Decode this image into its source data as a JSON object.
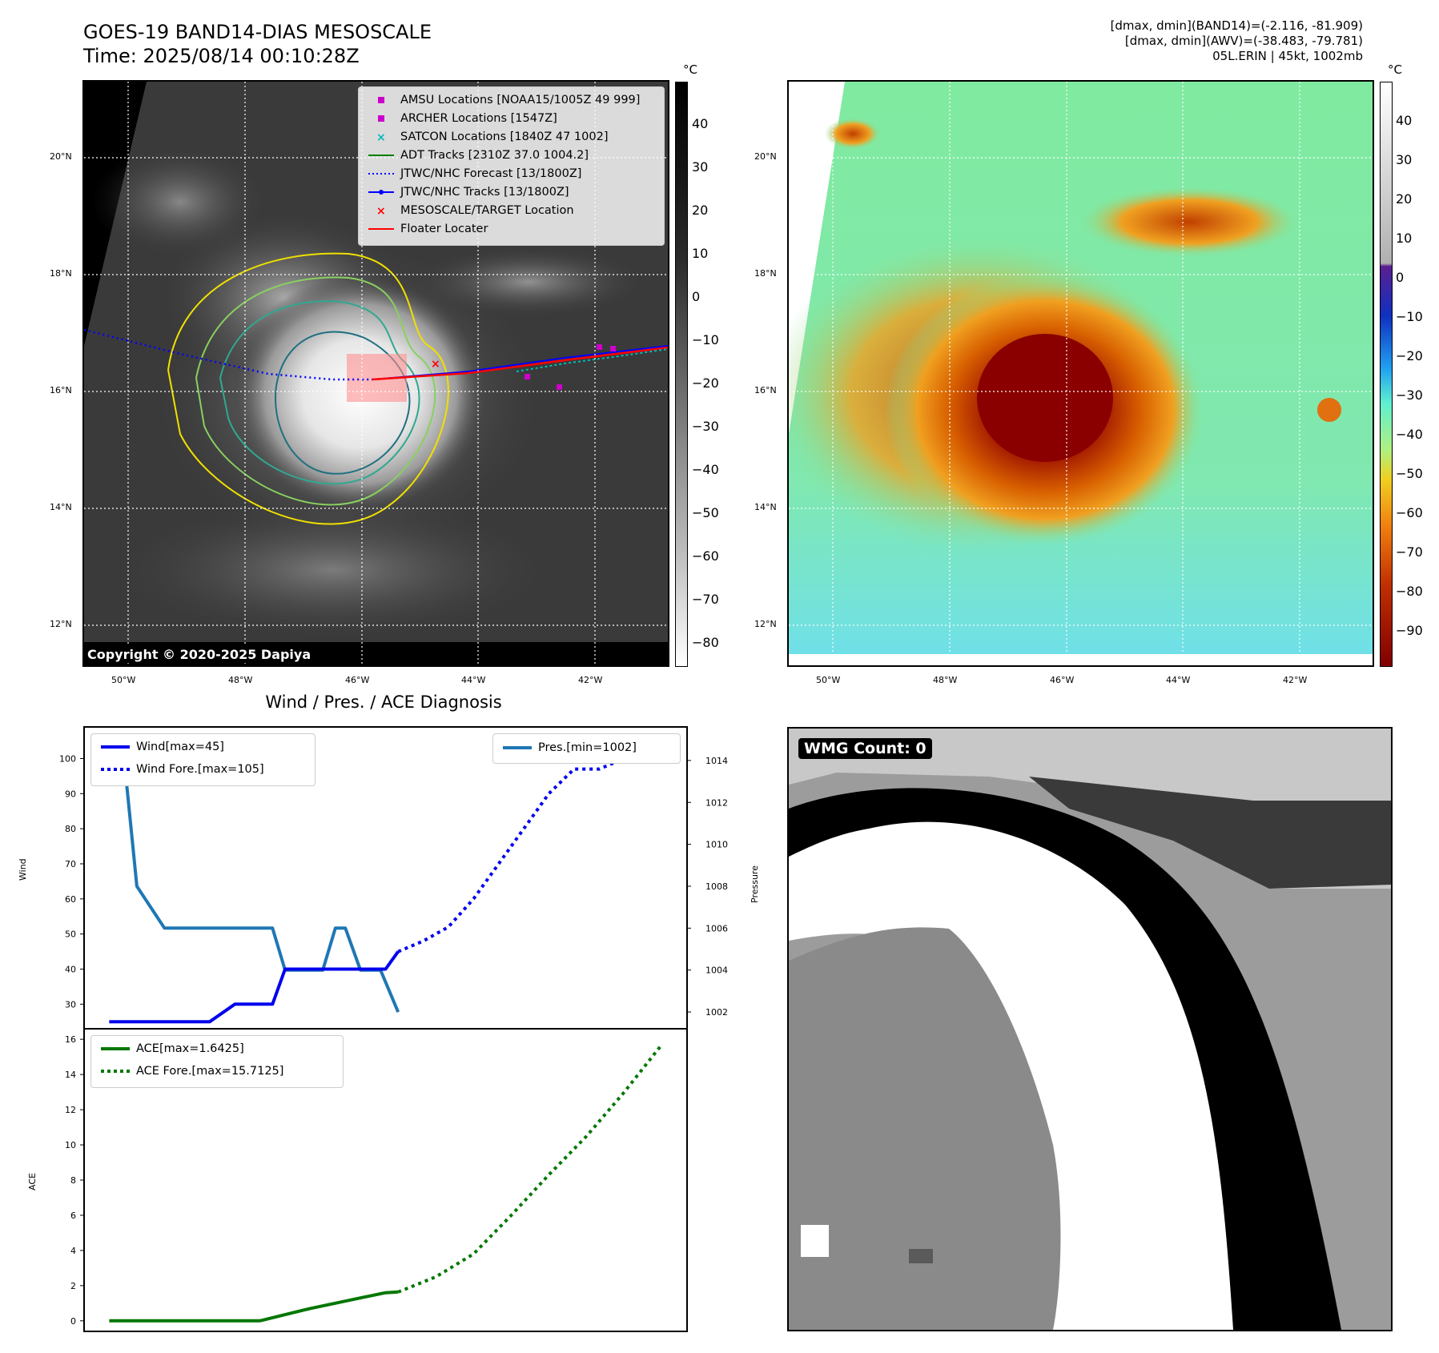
{
  "header": {
    "title_line1": "GOES-19 BAND14-DIAS MESOSCALE",
    "title_line2": "Time: 2025/08/14 00:10:28Z",
    "info_line1": "[dmax, dmin](BAND14)=(-2.116, -81.909)",
    "info_line2": "[dmax, dmin](AWV)=(-38.483, -79.781)",
    "info_line3": "05L.ERIN | 45kt, 1002mb"
  },
  "map": {
    "lon_labels": [
      "50°W",
      "48°W",
      "46°W",
      "44°W",
      "42°W"
    ],
    "lat_labels": [
      "20°N",
      "18°N",
      "16°N",
      "14°N",
      "12°N"
    ],
    "copyright": "Copyright © 2020-2025 Dapiya",
    "legend": [
      {
        "label": "AMSU Locations [NOAA15/1005Z 49 999]",
        "sym": "square",
        "color": "#cc00cc"
      },
      {
        "label": "ARCHER Locations [1547Z]",
        "sym": "square",
        "color": "#cc00cc"
      },
      {
        "label": "SATCON Locations [1840Z 47 1002]",
        "sym": "x",
        "color": "#00bbbb"
      },
      {
        "label": "ADT Tracks [2310Z 37.0 1004.2]",
        "sym": "line",
        "color": "#008000"
      },
      {
        "label": "JTWC/NHC Forecast [13/1800Z]",
        "sym": "dotted",
        "color": "#0000ff"
      },
      {
        "label": "JTWC/NHC Tracks [13/1800Z]",
        "sym": "dotline",
        "color": "#0000ff"
      },
      {
        "label": "MESOSCALE/TARGET Location",
        "sym": "x",
        "color": "#ff0000"
      },
      {
        "label": "Floater Locater",
        "sym": "line",
        "color": "#ff0000"
      }
    ]
  },
  "colorbar_left": {
    "unit": "°C",
    "ticks": [
      "40",
      "30",
      "20",
      "10",
      "0",
      "−10",
      "−20",
      "−30",
      "−40",
      "−50",
      "−60",
      "−70",
      "−80"
    ]
  },
  "colorbar_right": {
    "unit": "°C",
    "ticks": [
      "40",
      "30",
      "20",
      "10",
      "0",
      "−10",
      "−20",
      "−30",
      "−40",
      "−50",
      "−60",
      "−70",
      "−80",
      "−90"
    ]
  },
  "chart_data": [
    {
      "type": "line",
      "title": "Wind / Pres. / ACE Diagnosis",
      "ylabel": "Wind",
      "y2label": "Pressure",
      "ylim": [
        23,
        109
      ],
      "y2lim": [
        1001.2,
        1015.6
      ],
      "yticks": [
        30,
        40,
        50,
        60,
        70,
        80,
        90,
        100
      ],
      "y2ticks": [
        1002,
        1004,
        1006,
        1008,
        1010,
        1012,
        1014
      ],
      "xlim": [
        0,
        24
      ],
      "series": [
        {
          "name": "Wind[max=45]",
          "style": "solid",
          "color": "#0000ee",
          "axis": "left",
          "x": [
            1,
            2,
            3,
            4,
            5,
            6,
            7,
            7.5,
            8,
            9,
            10,
            11,
            12,
            12.5
          ],
          "values": [
            25,
            25,
            25,
            25,
            25,
            30,
            30,
            30,
            40,
            40,
            40,
            40,
            40,
            45
          ]
        },
        {
          "name": "Wind Fore.[max=105]",
          "style": "dotted",
          "color": "#0000ee",
          "axis": "left",
          "x": [
            12.5,
            13.5,
            14.5,
            15.5,
            16.5,
            17.5,
            18.5,
            19.5,
            20.5,
            21.5,
            22.5
          ],
          "values": [
            45,
            48,
            52,
            60,
            70,
            80,
            90,
            97,
            97,
            100,
            103
          ]
        },
        {
          "name": "Pres.[min=1002]",
          "style": "solid",
          "color": "#1f77b4",
          "axis": "right",
          "x": [
            1,
            1.6,
            2.1,
            3.2,
            4,
            5,
            6,
            7,
            7.5,
            8,
            9,
            9.5,
            10,
            10.4,
            11,
            11.5,
            11.8,
            12.5
          ],
          "values": [
            1014,
            1014,
            1008,
            1006,
            1006,
            1006,
            1006,
            1006,
            1006,
            1004,
            1004,
            1004,
            1006,
            1006,
            1004,
            1004,
            1004,
            1002
          ]
        }
      ]
    },
    {
      "type": "line",
      "ylabel": "ACE",
      "ylim": [
        -0.6,
        16.6
      ],
      "yticks": [
        0,
        2,
        4,
        6,
        8,
        10,
        12,
        14,
        16
      ],
      "xlim": [
        0,
        24
      ],
      "series": [
        {
          "name": "ACE[max=1.6425]",
          "style": "solid",
          "color": "#007700",
          "x": [
            1,
            3,
            5,
            7,
            8,
            9,
            10,
            11,
            12,
            12.5
          ],
          "values": [
            0,
            0,
            0,
            0,
            0.35,
            0.7,
            1.0,
            1.3,
            1.6,
            1.64
          ]
        },
        {
          "name": "ACE Fore.[max=15.7125]",
          "style": "dotted",
          "color": "#007700",
          "x": [
            12.5,
            14,
            15.5,
            17,
            18.5,
            20,
            21.5,
            23
          ],
          "values": [
            1.64,
            2.5,
            3.8,
            6.0,
            8.3,
            10.5,
            13.0,
            15.71
          ]
        }
      ]
    }
  ],
  "wmg": {
    "label": "WMG Count: 0"
  }
}
